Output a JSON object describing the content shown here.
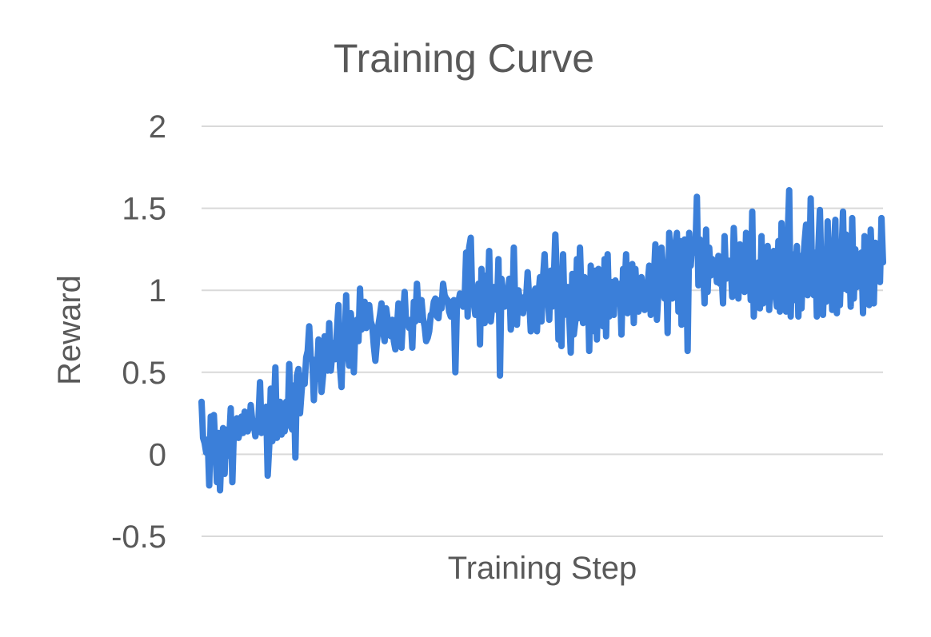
{
  "chart_data": {
    "type": "line",
    "title": "Training Curve",
    "xlabel": "Training Step",
    "ylabel": "Reward",
    "ylim": [
      -0.5,
      2
    ],
    "yticks": [
      "2",
      "1.5",
      "1",
      "0.5",
      "0",
      "-0.5"
    ],
    "grid": true,
    "legend": "none",
    "colors": {
      "line": "#3b7fd9",
      "grid": "#d9d9d9",
      "text": "#595959"
    },
    "series": [
      {
        "values": [
          0.32,
          0.1,
          0.07,
          0.01,
          0.09,
          -0.19,
          0.23,
          0.02,
          0.24,
          0.03,
          -0.17,
          0.13,
          -0.22,
          0.03,
          0.16,
          -0.12,
          0.15,
          -0.01,
          0.09,
          0.28,
          -0.17,
          0.15,
          0.12,
          0.22,
          0.1,
          0.14,
          0.23,
          0.13,
          0.26,
          0.19,
          0.14,
          0.17,
          0.3,
          0.2,
          0.18,
          0.11,
          0.16,
          0.22,
          0.44,
          0.13,
          0.2,
          0.26,
          0.29,
          -0.13,
          0.05,
          0.4,
          0.08,
          0.26,
          0.53,
          0.1,
          0.22,
          0.32,
          0.12,
          0.22,
          0.14,
          0.32,
          0.2,
          0.55,
          0.17,
          0.15,
          0.42,
          -0.02,
          0.48,
          0.52,
          0.25,
          0.38,
          0.48,
          0.43,
          0.59,
          0.63,
          0.78,
          0.58,
          0.58,
          0.33,
          0.54,
          0.46,
          0.7,
          0.62,
          0.38,
          0.48,
          0.72,
          0.56,
          0.51,
          0.8,
          0.51,
          0.62,
          0.68,
          0.58,
          0.75,
          0.91,
          0.53,
          0.41,
          0.75,
          0.66,
          0.97,
          0.62,
          0.54,
          0.86,
          0.72,
          0.5,
          0.77,
          0.82,
          0.69,
          1.01,
          0.76,
          0.82,
          0.93,
          0.77,
          0.8,
          0.91,
          0.81,
          0.78,
          0.66,
          0.57,
          0.69,
          0.79,
          0.85,
          0.92,
          0.75,
          0.69,
          0.89,
          0.82,
          0.77,
          0.72,
          0.82,
          0.69,
          0.64,
          0.77,
          0.92,
          0.68,
          0.65,
          0.84,
          0.99,
          0.79,
          0.8,
          0.77,
          0.82,
          0.65,
          0.93,
          0.81,
          1.04,
          0.88,
          0.82,
          0.94,
          0.83,
          0.78,
          0.69,
          0.71,
          0.75,
          0.85,
          0.86,
          0.93,
          0.95,
          0.84,
          0.83,
          0.94,
          0.89,
          1.04,
          0.97,
          0.95,
          0.94,
          0.87,
          0.84,
          0.91,
          0.94,
          0.5,
          0.92,
          0.93,
          0.98,
          0.97,
          0.9,
          0.94,
          1.23,
          0.84,
          1.26,
          1.32,
          0.93,
          0.92,
          0.85,
          0.98,
          1.04,
          0.67,
          1.13,
          0.93,
          0.8,
          1.09,
          0.91,
          1.24,
          0.81,
          0.91,
          1.02,
          0.9,
          0.88,
          1.19,
          0.48,
          1.07,
          0.99,
          0.9,
          0.95,
          0.94,
          1.07,
          0.76,
          0.84,
          1.26,
          0.87,
          0.79,
          1.0,
          0.93,
          0.95,
          0.86,
          0.96,
          0.95,
          1.11,
          0.94,
          0.75,
          0.91,
          0.98,
          1.01,
          0.75,
          0.97,
          1.08,
          0.81,
          1.08,
          1.22,
          0.99,
          0.97,
          0.82,
          1.12,
          0.9,
          1.06,
          1.34,
          1.07,
          0.7,
          1.09,
          0.66,
          1.22,
          0.85,
          0.97,
          1.02,
          0.84,
          0.62,
          1.1,
          0.73,
          0.81,
          1.19,
          0.83,
          1.26,
          0.97,
          0.8,
          1.08,
          0.87,
          1.05,
          0.63,
          1.15,
          0.75,
          0.85,
          1.12,
          0.7,
          1.13,
          0.86,
          1.08,
          0.78,
          1.19,
          0.72,
          1.22,
          0.84,
          1.01,
          1.05,
          0.85,
          1.06,
          0.92,
          0.95,
          1.04,
          0.73,
          1.13,
          1.0,
          1.22,
          0.86,
          1.01,
          1.05,
          1.16,
          0.8,
          1.13,
          0.96,
          0.87,
          0.93,
          1.08,
          0.93,
          0.88,
          1.04,
          1.03,
          1.15,
          0.85,
          1.0,
          1.06,
          1.28,
          0.82,
          0.99,
          1.15,
          1.26,
          1.13,
          0.95,
          1.17,
          0.74,
          1.35,
          1.11,
          0.95,
          1.03,
          1.28,
          1.35,
          0.87,
          1.3,
          0.79,
          1.15,
          1.31,
          1.25,
          0.63,
          1.35,
          1.15,
          1.29,
          1.31,
          1.23,
          1.57,
          1.03,
          1.31,
          1.13,
          1.14,
          0.92,
          1.37,
          0.99,
          1.26,
          1.09,
          1.19,
          1.15,
          1.17,
          1.05,
          1.21,
          1.04,
          1.11,
          0.92,
          1.33,
          1.07,
          1.14,
          1.18,
          1.16,
          0.96,
          1.38,
          1.16,
          1.08,
          0.95,
          1.28,
          1.16,
          1.11,
          0.99,
          1.35,
          1.01,
          1.21,
          0.94,
          1.48,
          0.84,
          1.04,
          0.98,
          1.17,
          0.89,
          1.33,
          0.92,
          1.14,
          1.01,
          1.27,
          0.88,
          1.14,
          1.07,
          1.24,
          0.98,
          0.9,
          1.3,
          0.87,
          1.41,
          0.95,
          1.11,
          0.87,
          1.32,
          1.61,
          0.84,
          1.22,
          0.94,
          1.06,
          1.27,
          0.84,
          1.21,
          0.89,
          1.15,
          1.29,
          1.4,
          0.97,
          1.08,
          1.56,
          1.05,
          0.97,
          1.23,
          0.84,
          1.26,
          1.49,
          1.07,
          0.85,
          1.17,
          0.93,
          1.42,
          0.96,
          1.13,
          0.88,
          1.25,
          1.43,
          0.86,
          1.15,
          0.91,
          1.21,
          1.48,
          1.01,
          1.34,
          1.0,
          1.25,
          0.9,
          1.44,
          0.95,
          1.25,
          1.02,
          1.19,
          1.05,
          1.23,
          0.86,
          1.33,
          0.97,
          1.18,
          0.91,
          1.37,
          1.1,
          0.92,
          1.29,
          1.28,
          1.14,
          1.05,
          1.44,
          1.17
        ]
      }
    ]
  }
}
